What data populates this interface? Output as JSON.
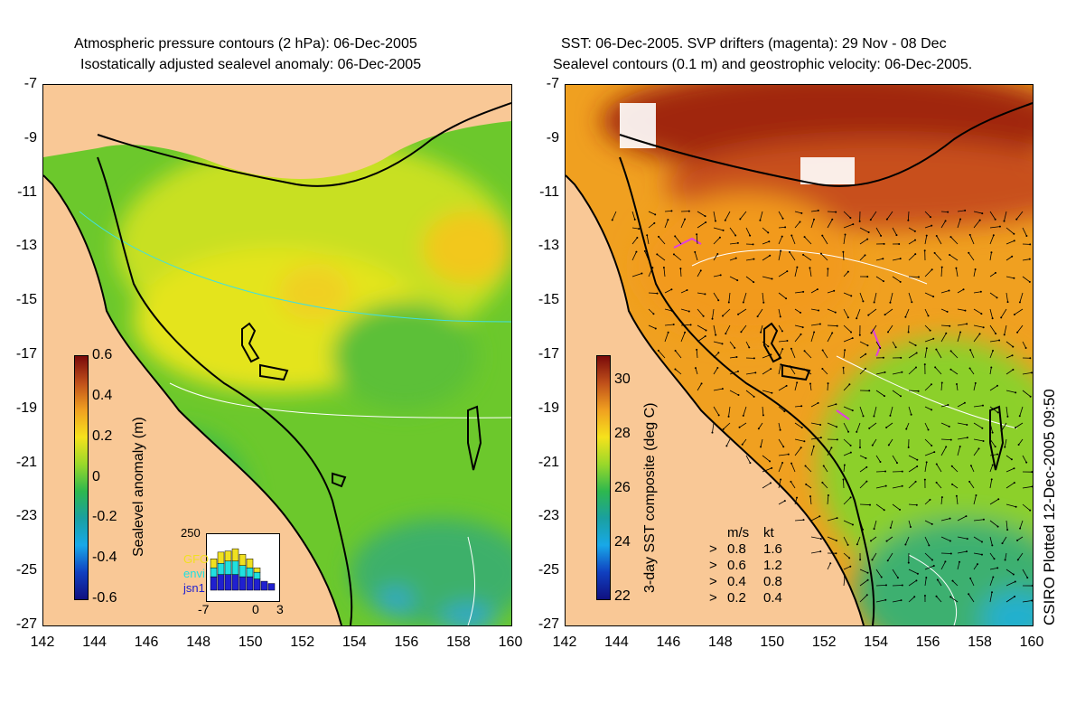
{
  "left_panel": {
    "title_line1": "Atmospheric pressure contours (2 hPa): 06-Dec-2005",
    "title_line2": "Isostatically adjusted sealevel anomaly: 06-Dec-2005",
    "colorbar": {
      "label": "Sealevel anomaly (m)",
      "ticks": [
        "0.6",
        "0.4",
        "0.2",
        "0",
        "-0.2",
        "-0.4",
        "-0.6"
      ],
      "colors": [
        "#7a0a0a",
        "#c0501a",
        "#f0a020",
        "#f6e21c",
        "#9ad82a",
        "#2eb84e",
        "#1aa0a0",
        "#18a8e8",
        "#1040c0",
        "#101080"
      ]
    },
    "inset": {
      "ymax_label": "250",
      "series_labels": [
        "GFO",
        "envi",
        "jsn1"
      ],
      "series_colors": [
        "#f0e020",
        "#20e0e0",
        "#2020d0"
      ],
      "x_labels": [
        "-7",
        "0",
        "3"
      ],
      "counts": [
        [
          40,
          40,
          60
        ],
        [
          50,
          50,
          70
        ],
        [
          45,
          60,
          70
        ],
        [
          55,
          60,
          70
        ],
        [
          50,
          50,
          60
        ],
        [
          40,
          40,
          60
        ],
        [
          20,
          30,
          50
        ],
        [
          0,
          0,
          40
        ],
        [
          0,
          0,
          30
        ]
      ]
    }
  },
  "right_panel": {
    "title_line1": "SST: 06-Dec-2005. SVP drifters (magenta): 29 Nov - 08 Dec",
    "title_line2": "Sealevel contours (0.1 m) and geostrophic velocity: 06-Dec-2005.",
    "colorbar": {
      "label": "3-day SST composite (deg C)",
      "ticks": [
        "30",
        "28",
        "26",
        "24",
        "22"
      ],
      "colors": [
        "#7a0a0a",
        "#c0501a",
        "#f0a020",
        "#f6e21c",
        "#9ad82a",
        "#2eb84e",
        "#1aa0a0",
        "#18a8e8",
        "#1040c0",
        "#101080"
      ]
    },
    "velocity_legend": {
      "header_ms": "m/s",
      "header_kt": "kt",
      "rows": [
        {
          "ms": "0.8",
          "kt": "1.6"
        },
        {
          "ms": "0.6",
          "kt": "1.2"
        },
        {
          "ms": "0.4",
          "kt": "0.8"
        },
        {
          "ms": "0.2",
          "kt": "0.4"
        }
      ]
    }
  },
  "y_ticks": [
    "-7",
    "-9",
    "-11",
    "-13",
    "-15",
    "-17",
    "-19",
    "-21",
    "-23",
    "-25",
    "-27"
  ],
  "x_ticks": [
    "142",
    "144",
    "146",
    "148",
    "150",
    "152",
    "154",
    "156",
    "158",
    "160"
  ],
  "credit": "CSIRO Plotted 12-Dec-2005 09:50",
  "colors": {
    "land": "#f9c896",
    "white_contour": "#ffffff",
    "pressure_contour": "#40e0e0",
    "coastline": "#000000"
  }
}
